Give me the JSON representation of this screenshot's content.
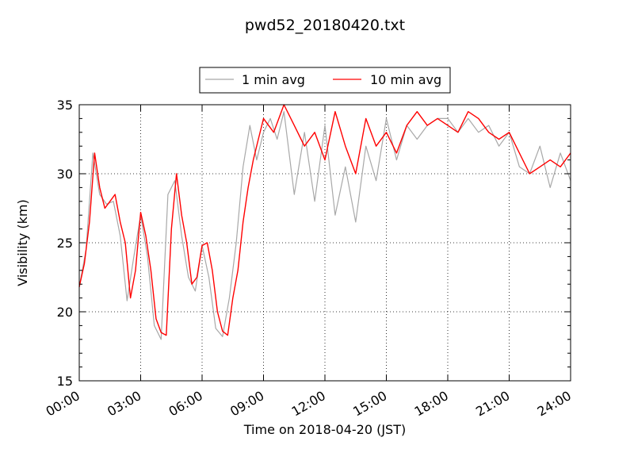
{
  "chart_data": {
    "type": "line",
    "title": "pwd52_20180420.txt",
    "xlabel": "Time on 2018-04-20 (JST)",
    "ylabel": "Visibility (km)",
    "xlim": [
      "00:00",
      "24:00"
    ],
    "ylim": [
      15,
      35
    ],
    "x_ticks": [
      "00:00",
      "03:00",
      "06:00",
      "09:00",
      "12:00",
      "15:00",
      "18:00",
      "21:00",
      "24:00"
    ],
    "y_ticks": [
      15,
      20,
      25,
      30,
      35
    ],
    "grid": true,
    "legend_position": "top-center, above plot",
    "series": [
      {
        "name": "1 min avg",
        "color": "#a8a8a8",
        "x": [
          "00:00",
          "00:20",
          "00:40",
          "01:00",
          "01:20",
          "01:40",
          "02:00",
          "02:20",
          "02:40",
          "03:00",
          "03:20",
          "03:40",
          "04:00",
          "04:20",
          "04:40",
          "05:00",
          "05:20",
          "05:40",
          "06:00",
          "06:20",
          "06:40",
          "07:00",
          "07:20",
          "07:40",
          "08:00",
          "08:20",
          "08:40",
          "09:00",
          "09:20",
          "09:40",
          "10:00",
          "10:30",
          "11:00",
          "11:30",
          "12:00",
          "12:30",
          "13:00",
          "13:30",
          "14:00",
          "14:30",
          "15:00",
          "15:30",
          "16:00",
          "16:30",
          "17:00",
          "17:30",
          "18:00",
          "18:30",
          "19:00",
          "19:30",
          "20:00",
          "20:30",
          "21:00",
          "21:30",
          "22:00",
          "22:30",
          "23:00",
          "23:30",
          "24:00"
        ],
        "values": [
          21.8,
          24.5,
          31.5,
          28.5,
          27.8,
          28.0,
          25.5,
          20.8,
          24.0,
          27.0,
          24.0,
          19.0,
          18.0,
          28.5,
          29.5,
          25.5,
          22.5,
          21.5,
          24.8,
          22.5,
          18.8,
          18.2,
          21.0,
          25.0,
          30.5,
          33.5,
          31.0,
          33.0,
          34.0,
          32.5,
          34.5,
          28.5,
          33.0,
          28.0,
          33.5,
          27.0,
          30.5,
          26.5,
          32.0,
          29.5,
          34.0,
          31.0,
          33.5,
          32.5,
          33.5,
          34.0,
          34.0,
          33.0,
          34.0,
          33.0,
          33.5,
          32.0,
          33.0,
          30.5,
          30.0,
          32.0,
          29.0,
          31.5,
          29.5
        ]
      },
      {
        "name": "10 min avg",
        "color": "#ff0000",
        "x": [
          "00:00",
          "00:15",
          "00:30",
          "00:45",
          "01:00",
          "01:15",
          "01:30",
          "01:45",
          "02:00",
          "02:15",
          "02:30",
          "02:45",
          "03:00",
          "03:15",
          "03:30",
          "03:45",
          "04:00",
          "04:15",
          "04:30",
          "04:45",
          "05:00",
          "05:15",
          "05:30",
          "05:45",
          "06:00",
          "06:15",
          "06:30",
          "06:45",
          "07:00",
          "07:15",
          "07:30",
          "07:45",
          "08:00",
          "08:15",
          "08:30",
          "08:45",
          "09:00",
          "09:30",
          "10:00",
          "10:30",
          "11:00",
          "11:30",
          "12:00",
          "12:30",
          "13:00",
          "13:30",
          "14:00",
          "14:30",
          "15:00",
          "15:30",
          "16:00",
          "16:30",
          "17:00",
          "17:30",
          "18:00",
          "18:30",
          "19:00",
          "19:30",
          "20:00",
          "20:30",
          "21:00",
          "21:30",
          "22:00",
          "22:30",
          "23:00",
          "23:30",
          "24:00"
        ],
        "values": [
          21.8,
          23.5,
          26.5,
          31.5,
          29.0,
          27.5,
          28.0,
          28.5,
          26.5,
          25.0,
          21.0,
          23.0,
          27.2,
          25.5,
          23.0,
          19.5,
          18.5,
          18.3,
          26.0,
          30.0,
          27.0,
          25.0,
          22.0,
          22.5,
          24.8,
          25.0,
          23.0,
          20.0,
          18.6,
          18.3,
          21.0,
          23.0,
          26.5,
          29.0,
          31.0,
          32.5,
          34.0,
          33.0,
          35.0,
          33.5,
          32.0,
          33.0,
          31.0,
          34.5,
          32.0,
          30.0,
          34.0,
          32.0,
          33.0,
          31.5,
          33.5,
          34.5,
          33.5,
          34.0,
          33.5,
          33.0,
          34.5,
          34.0,
          33.0,
          32.5,
          33.0,
          31.5,
          30.0,
          30.5,
          31.0,
          30.5,
          31.5
        ]
      }
    ]
  }
}
